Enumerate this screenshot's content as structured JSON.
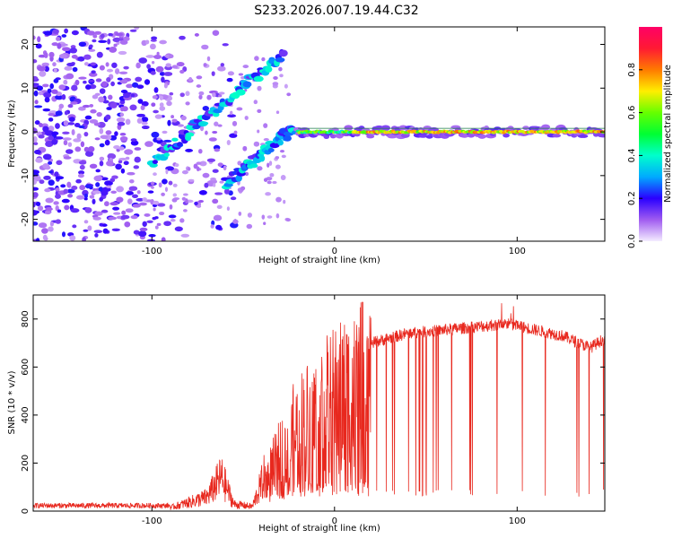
{
  "title": "S233.2026.007.19.44.C32",
  "chart_data": [
    {
      "type": "heatmap",
      "name": "spectrogram",
      "xlabel": "Height of straight line (km)",
      "ylabel": "Frequency (Hz)",
      "xlim": [
        -165,
        148
      ],
      "ylim": [
        -25,
        24
      ],
      "xticks": [
        -100,
        0,
        100
      ],
      "yticks": [
        -20,
        -10,
        0,
        10,
        20
      ],
      "colorbar": {
        "label": "Normalized spectral amplitude",
        "range": [
          0,
          1
        ],
        "ticks": [
          0.0,
          0.2,
          0.4,
          0.6,
          0.8
        ]
      },
      "features": {
        "carrier_line": {
          "freq_hz": 0,
          "x_start_km": -20,
          "x_end_km": 148,
          "amplitude": 0.8
        },
        "upper_trace": {
          "from": [
            -100,
            -7
          ],
          "to": [
            -28,
            18
          ],
          "amplitude": 0.3
        },
        "lower_trace": {
          "from": [
            -60,
            -12
          ],
          "to": [
            -22,
            1
          ],
          "amplitude": 0.3
        }
      }
    },
    {
      "type": "line",
      "name": "snr",
      "xlabel": "Height of straight line (km)",
      "ylabel": "SNR (10 * v/v)",
      "xlim": [
        -165,
        148
      ],
      "ylim": [
        0,
        900
      ],
      "xticks": [
        -100,
        0,
        100
      ],
      "yticks": [
        0,
        200,
        400,
        600,
        800
      ],
      "color": "#e8281e",
      "series_profile": [
        {
          "x": -165,
          "y": 15
        },
        {
          "x": -90,
          "y": 15
        },
        {
          "x": -70,
          "y": 60
        },
        {
          "x": -62,
          "y": 150
        },
        {
          "x": -55,
          "y": 30
        },
        {
          "x": -45,
          "y": 20
        },
        {
          "x": -36,
          "y": 200
        },
        {
          "x": -20,
          "y": 450
        },
        {
          "x": 0,
          "y": 600
        },
        {
          "x": 20,
          "y": 700
        },
        {
          "x": 40,
          "y": 740
        },
        {
          "x": 95,
          "y": 780
        },
        {
          "x": 125,
          "y": 730
        },
        {
          "x": 140,
          "y": 680
        },
        {
          "x": 148,
          "y": 720
        }
      ]
    }
  ]
}
